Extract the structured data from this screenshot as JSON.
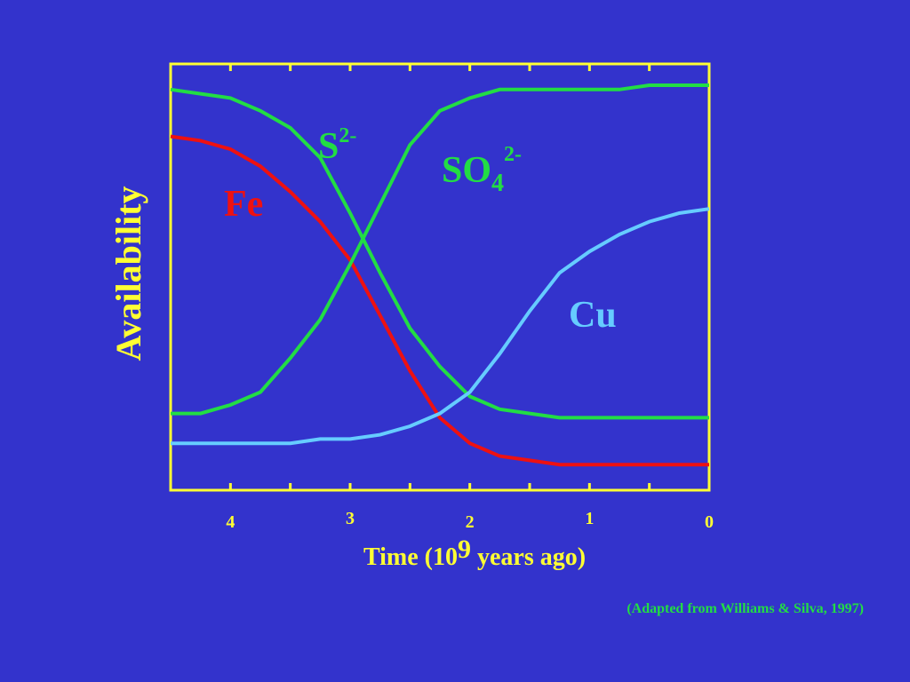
{
  "chart_data": {
    "type": "line",
    "y_label": "Availability",
    "x_label": [
      "Time (10",
      "9",
      " years ago)"
    ],
    "source": "(Adapted from Williams & Silva, 1997)",
    "x": [
      4.5,
      4.25,
      4.0,
      3.75,
      3.5,
      3.25,
      3.0,
      2.75,
      2.5,
      2.25,
      2.0,
      1.75,
      1.5,
      1.25,
      1.0,
      0.75,
      0.5,
      0.25,
      0
    ],
    "xlim": [
      4.5,
      0
    ],
    "xticks": [
      4,
      3,
      2,
      1,
      0
    ],
    "xminor_ticks": [
      4.5,
      3.5,
      2.5,
      1.5,
      0.5
    ],
    "ylim": [
      0,
      1
    ],
    "axis_color": "#ffff33",
    "series": [
      {
        "name": "S",
        "name_sup": "2-",
        "color": "#22dd44",
        "values": [
          0.94,
          0.93,
          0.92,
          0.89,
          0.85,
          0.78,
          0.65,
          0.51,
          0.38,
          0.29,
          0.22,
          0.19,
          0.18,
          0.17,
          0.17,
          0.17,
          0.17,
          0.17,
          0.17
        ]
      },
      {
        "name": "Fe",
        "color": "#ee1111",
        "values": [
          0.83,
          0.82,
          0.8,
          0.76,
          0.7,
          0.63,
          0.54,
          0.41,
          0.28,
          0.17,
          0.11,
          0.08,
          0.07,
          0.06,
          0.06,
          0.06,
          0.06,
          0.06,
          0.06
        ]
      },
      {
        "name": "SO",
        "name_sub": "4",
        "name_sup": "2-",
        "color": "#22dd44",
        "values": [
          0.18,
          0.18,
          0.2,
          0.23,
          0.31,
          0.4,
          0.53,
          0.67,
          0.81,
          0.89,
          0.92,
          0.94,
          0.94,
          0.94,
          0.94,
          0.94,
          0.95,
          0.95,
          0.95
        ]
      },
      {
        "name": "Cu",
        "color": "#66ccff",
        "values": [
          0.11,
          0.11,
          0.11,
          0.11,
          0.11,
          0.12,
          0.12,
          0.13,
          0.15,
          0.18,
          0.23,
          0.32,
          0.42,
          0.51,
          0.56,
          0.6,
          0.63,
          0.65,
          0.66
        ]
      }
    ]
  }
}
